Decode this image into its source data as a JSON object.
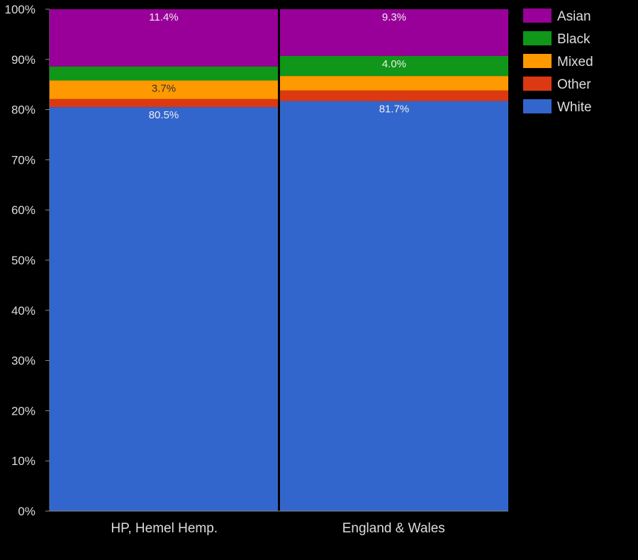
{
  "chart_data": {
    "type": "bar",
    "stacked": true,
    "normalized": true,
    "categories": [
      "HP, Hemel Hemp.",
      "England & Wales"
    ],
    "series": [
      {
        "name": "White",
        "color": "#3366cc",
        "values": [
          80.5,
          81.7
        ],
        "labels": [
          "80.5%",
          "81.7%"
        ]
      },
      {
        "name": "Other",
        "color": "#dc3912",
        "values": [
          1.6,
          2.1
        ],
        "labels": [
          "",
          ""
        ]
      },
      {
        "name": "Mixed",
        "color": "#ff9900",
        "values": [
          3.7,
          2.9
        ],
        "labels": [
          "3.7%",
          ""
        ]
      },
      {
        "name": "Black",
        "color": "#109618",
        "values": [
          2.8,
          4.0
        ],
        "labels": [
          "",
          "4.0%"
        ]
      },
      {
        "name": "Asian",
        "color": "#990099",
        "values": [
          11.4,
          9.3
        ],
        "labels": [
          "11.4%",
          "9.3%"
        ]
      }
    ],
    "legend_order": [
      "Asian",
      "Black",
      "Mixed",
      "Other",
      "White"
    ],
    "yticks": [
      "0%",
      "10%",
      "20%",
      "30%",
      "40%",
      "50%",
      "60%",
      "70%",
      "80%",
      "90%",
      "100%"
    ],
    "ylim": [
      0,
      100
    ],
    "legend": "right",
    "grid": false,
    "background": "#000000"
  }
}
